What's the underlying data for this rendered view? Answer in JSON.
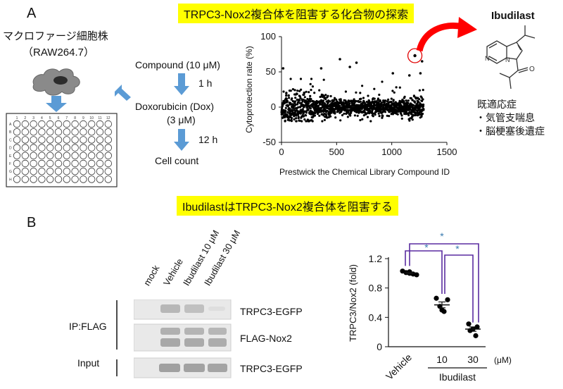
{
  "panel_a": {
    "label": "A",
    "banner": "TRPC3-Nox2複合体を阻害する化合物の探索",
    "cell_line": "マクロファージ細胞株",
    "cell_line_name": "（RAW264.7）",
    "plate_rows": [
      "A",
      "B",
      "C",
      "D",
      "E",
      "F",
      "G",
      "H"
    ],
    "plate_cols": [
      "1",
      "2",
      "3",
      "4",
      "5",
      "6",
      "7",
      "8",
      "9",
      "10",
      "11",
      "12"
    ],
    "steps": {
      "compound": "Compound (10 μM)",
      "time1": "1 h",
      "doxorubicin": "Doxorubicin (Dox)",
      "dox_conc": "(3 μM)",
      "time2": "12 h",
      "count": "Cell count"
    },
    "drug": {
      "name": "Ibudilast",
      "indications_title": "既適応症",
      "indications": [
        "・気管支喘息",
        "・脳梗塞後遺症"
      ]
    }
  },
  "panel_b": {
    "label": "B",
    "banner": "IbudilastはTRPC3-Nox2複合体を阻害する",
    "lanes": [
      "mock",
      "Vehicle",
      "Ibudilast 10 μM",
      "Ibudilast 30 μM"
    ],
    "ip_label": "IP:FLAG",
    "input_label": "Input",
    "bands": [
      "TRPC3-EGFP",
      "FLAG-Nox2",
      "TRPC3-EGFP"
    ],
    "ibudilast_label": "Ibudilast",
    "unit": "(μM)",
    "significance": [
      "*",
      "*",
      "*"
    ]
  },
  "chart_data": [
    {
      "type": "scatter",
      "title": "",
      "xlabel": "Prestwick the Chemical Library Compound ID",
      "ylabel": "Cytoprotection rate (%)",
      "xlim": [
        0,
        1500
      ],
      "ylim": [
        -50,
        100
      ],
      "xticks": [
        0,
        500,
        1000,
        1500
      ],
      "yticks": [
        -50,
        0,
        50,
        100
      ],
      "n_points_approx": 1280,
      "background_band_y": [
        -20,
        30
      ],
      "highlighted_points": [
        {
          "x": 1210,
          "y": 73,
          "label": "Ibudilast"
        }
      ],
      "notable_points": [
        {
          "x": 1275,
          "y": 65
        },
        {
          "x": 530,
          "y": 68
        },
        {
          "x": 680,
          "y": 63
        },
        {
          "x": 15,
          "y": 55
        },
        {
          "x": 360,
          "y": 55
        },
        {
          "x": 620,
          "y": 57
        },
        {
          "x": 1010,
          "y": 48
        },
        {
          "x": 1160,
          "y": 45
        },
        {
          "x": 1260,
          "y": 48
        }
      ],
      "grid": false,
      "highlight_color": "#e00000"
    },
    {
      "type": "scatter",
      "title": "",
      "xlabel": "",
      "ylabel": "TRPC3/Nox2 (fold)",
      "categories": [
        "Vehicle",
        "10",
        "30"
      ],
      "ylim": [
        0,
        1.2
      ],
      "yticks": [
        0,
        0.4,
        0.8,
        1.2
      ],
      "points": [
        [
          1.03,
          1.01,
          1.0,
          0.99,
          0.98,
          1.02
        ],
        [
          0.66,
          0.64,
          0.55,
          0.48,
          0.5
        ],
        [
          0.31,
          0.27,
          0.24,
          0.22,
          0.15
        ]
      ],
      "means": [
        1.005,
        0.57,
        0.24
      ],
      "sem": [
        0.01,
        0.04,
        0.03
      ],
      "grid": false
    }
  ]
}
